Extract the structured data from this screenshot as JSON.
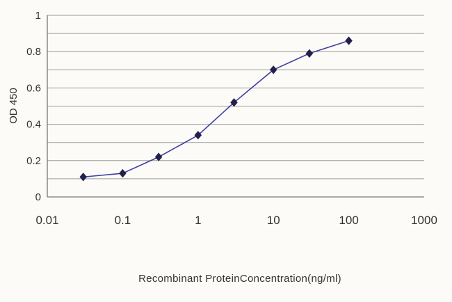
{
  "chart_data": {
    "type": "line",
    "title": "",
    "xlabel": "Recombinant ProteinConcentration(ng/ml)",
    "ylabel": "OD 450",
    "x_scale": "log",
    "xlim": [
      0.01,
      1000
    ],
    "ylim": [
      0,
      1
    ],
    "x_ticks": [
      0.01,
      0.1,
      1,
      10,
      100,
      1000
    ],
    "x_tick_labels": [
      "0.01",
      "0.1",
      "1",
      "10",
      "100",
      "1000"
    ],
    "y_ticks": [
      0,
      0.2,
      0.4,
      0.6,
      0.8,
      1
    ],
    "y_tick_labels": [
      "0",
      "0.2",
      "0.4",
      "0.6",
      "0.8",
      "1"
    ],
    "grid": "horizontal",
    "grid_step": 0.1,
    "legend": "none",
    "series": [
      {
        "name": "OD450",
        "x": [
          0.03,
          0.1,
          0.3,
          1,
          3,
          10,
          30,
          100
        ],
        "y": [
          0.11,
          0.13,
          0.22,
          0.34,
          0.52,
          0.7,
          0.79,
          0.86
        ],
        "marker": "diamond"
      }
    ]
  },
  "style": {
    "background": "#fcfbf8",
    "grid_color": "#9a9a96",
    "axis_color": "#77776f",
    "text_color": "#32322e",
    "line_color": "#3f3f9f",
    "marker_color": "#20204a"
  }
}
